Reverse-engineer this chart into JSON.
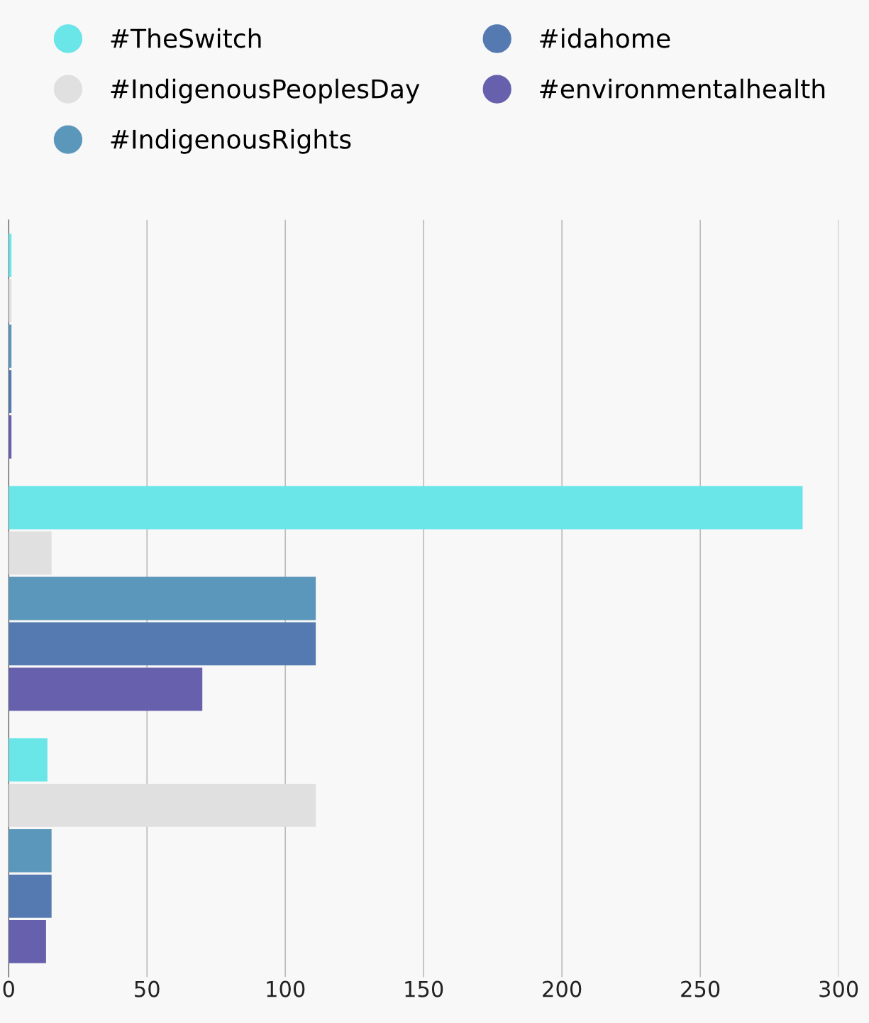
{
  "chart_data": {
    "type": "bar",
    "orientation": "horizontal",
    "categories": [
      null,
      null,
      null
    ],
    "series": [
      {
        "name": "#TheSwitch",
        "color": "#6ae5e8",
        "values": [
          1,
          287,
          14
        ]
      },
      {
        "name": "#IndigenousPeoplesDay",
        "color": "#e0e0e0",
        "values": [
          1,
          15.5,
          111
        ]
      },
      {
        "name": "#IndigenousRights",
        "color": "#5b97bb",
        "values": [
          1,
          111,
          15.5
        ]
      },
      {
        "name": "#idahome",
        "color": "#557ab1",
        "values": [
          1,
          111,
          15.5
        ]
      },
      {
        "name": "#environmentalhealth",
        "color": "#6761ad",
        "values": [
          1,
          70,
          13.5
        ]
      }
    ],
    "xlim": [
      0,
      300
    ],
    "xticks": [
      0,
      50,
      100,
      150,
      200,
      250,
      300
    ],
    "grid": "x",
    "legend": "top"
  }
}
